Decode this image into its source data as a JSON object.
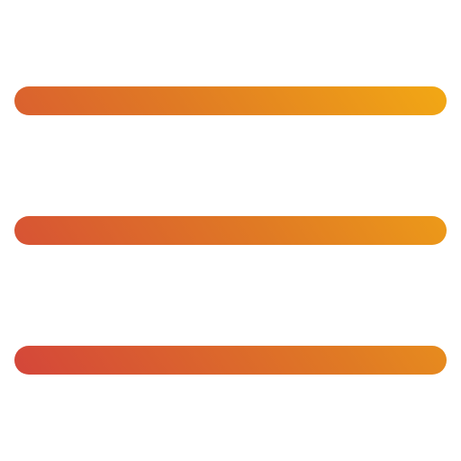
{
  "icon": {
    "name": "hamburger-menu-icon",
    "bar_count": 3,
    "gradient": {
      "start_color": "#d4463a",
      "mid_color": "#e07a24",
      "end_color": "#f2a814"
    },
    "background_color": "#ffffff"
  }
}
